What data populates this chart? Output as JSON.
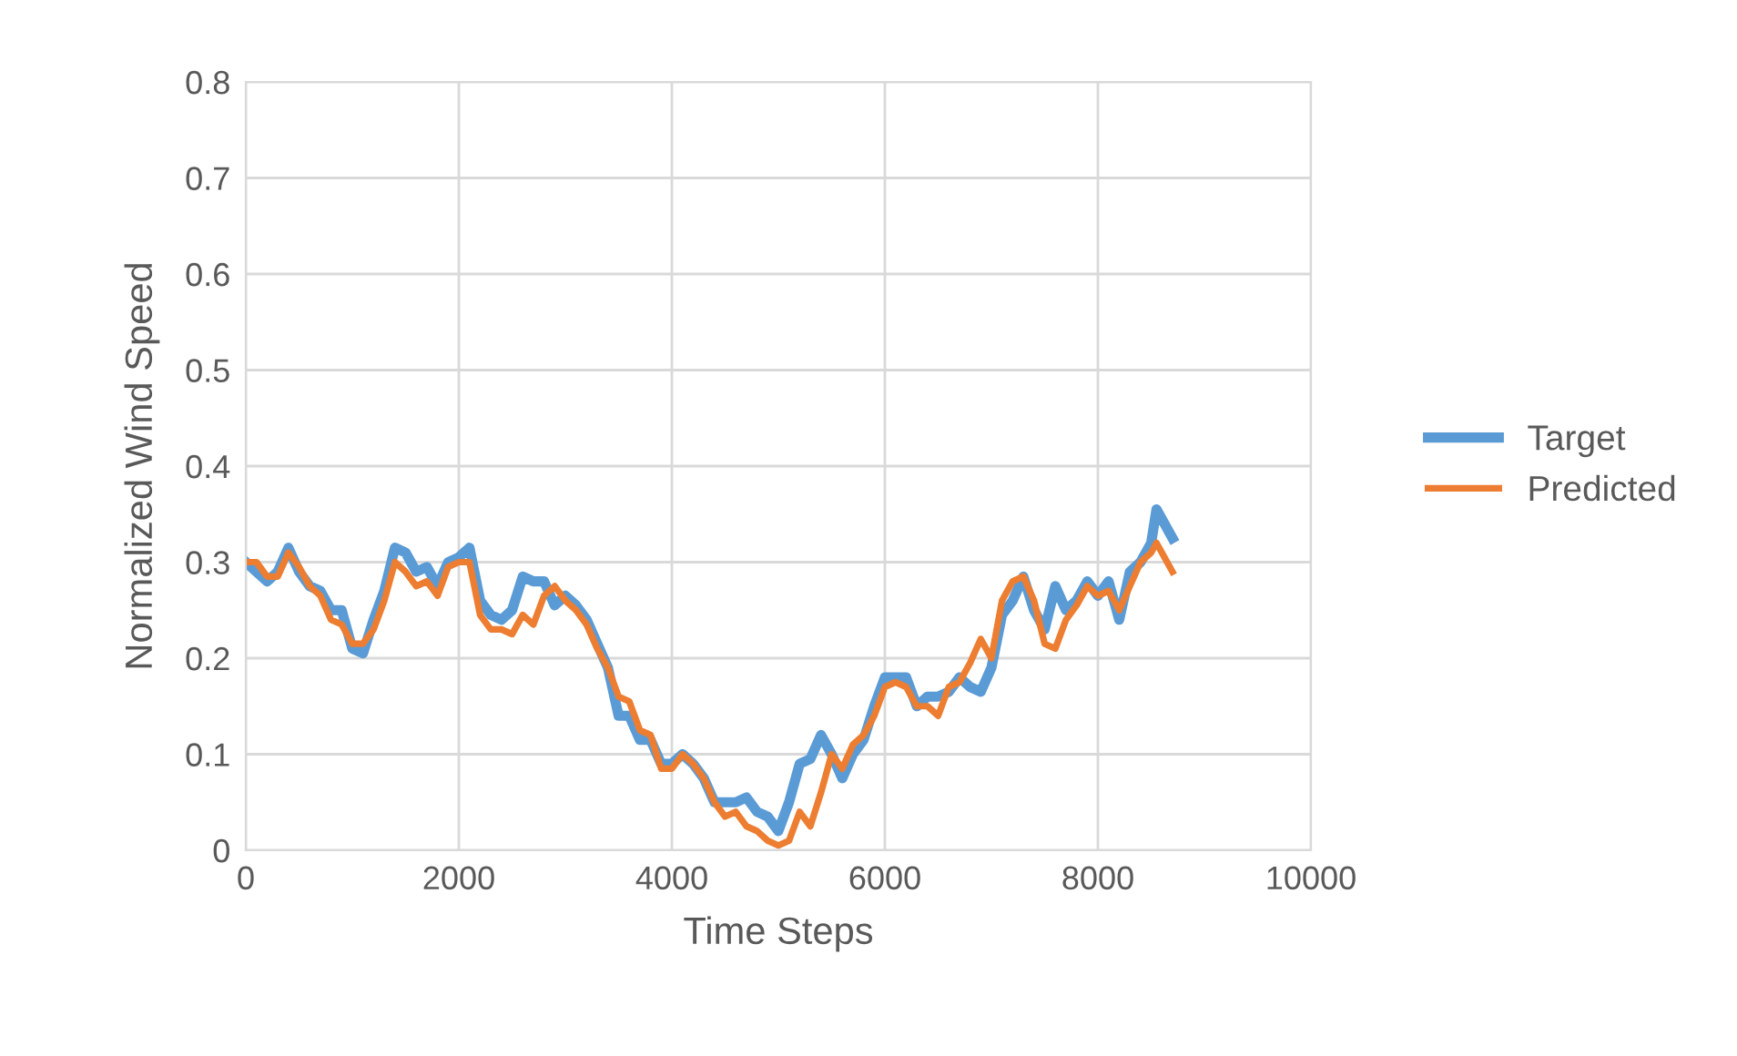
{
  "chart_data": {
    "type": "line",
    "xlabel": "Time Steps",
    "ylabel": "Normalized Wind Speed",
    "x": [
      0,
      100,
      200,
      300,
      400,
      500,
      600,
      700,
      800,
      900,
      1000,
      1100,
      1200,
      1300,
      1400,
      1500,
      1600,
      1700,
      1800,
      1900,
      2000,
      2100,
      2200,
      2300,
      2400,
      2500,
      2600,
      2700,
      2800,
      2900,
      3000,
      3100,
      3200,
      3300,
      3400,
      3500,
      3600,
      3700,
      3800,
      3900,
      4000,
      4100,
      4200,
      4300,
      4400,
      4500,
      4600,
      4700,
      4800,
      4900,
      5000,
      5100,
      5200,
      5300,
      5400,
      5500,
      5600,
      5700,
      5800,
      5900,
      6000,
      6100,
      6200,
      6300,
      6400,
      6500,
      6600,
      6700,
      6800,
      6900,
      7000,
      7100,
      7200,
      7300,
      7400,
      7500,
      7600,
      7700,
      7800,
      7900,
      8000,
      8100,
      8200,
      8300,
      8400,
      8500,
      8550,
      8700
    ],
    "series": [
      {
        "name": "Target",
        "color": "#5b9bd5",
        "values": [
          0.3,
          0.29,
          0.28,
          0.29,
          0.315,
          0.29,
          0.275,
          0.27,
          0.25,
          0.25,
          0.21,
          0.205,
          0.24,
          0.27,
          0.315,
          0.31,
          0.29,
          0.295,
          0.275,
          0.3,
          0.305,
          0.315,
          0.26,
          0.245,
          0.24,
          0.25,
          0.285,
          0.28,
          0.28,
          0.255,
          0.265,
          0.255,
          0.24,
          0.215,
          0.19,
          0.14,
          0.14,
          0.115,
          0.115,
          0.09,
          0.09,
          0.1,
          0.09,
          0.075,
          0.05,
          0.05,
          0.05,
          0.055,
          0.04,
          0.035,
          0.02,
          0.05,
          0.09,
          0.095,
          0.12,
          0.1,
          0.075,
          0.1,
          0.115,
          0.15,
          0.18,
          0.18,
          0.18,
          0.15,
          0.16,
          0.16,
          0.165,
          0.18,
          0.17,
          0.165,
          0.19,
          0.245,
          0.26,
          0.285,
          0.25,
          0.23,
          0.275,
          0.25,
          0.26,
          0.28,
          0.265,
          0.28,
          0.24,
          0.29,
          0.3,
          0.32,
          0.355,
          0.325
        ]
      },
      {
        "name": "Predicted",
        "color": "#ed7d31",
        "values": [
          0.3,
          0.3,
          0.285,
          0.285,
          0.31,
          0.295,
          0.275,
          0.265,
          0.24,
          0.235,
          0.215,
          0.215,
          0.23,
          0.26,
          0.3,
          0.29,
          0.275,
          0.28,
          0.265,
          0.295,
          0.3,
          0.3,
          0.245,
          0.23,
          0.23,
          0.225,
          0.245,
          0.235,
          0.265,
          0.275,
          0.26,
          0.25,
          0.235,
          0.21,
          0.19,
          0.16,
          0.155,
          0.125,
          0.12,
          0.085,
          0.085,
          0.1,
          0.09,
          0.075,
          0.05,
          0.035,
          0.04,
          0.025,
          0.02,
          0.01,
          0.005,
          0.01,
          0.04,
          0.025,
          0.06,
          0.1,
          0.085,
          0.11,
          0.12,
          0.14,
          0.17,
          0.175,
          0.17,
          0.15,
          0.15,
          0.14,
          0.17,
          0.175,
          0.195,
          0.22,
          0.2,
          0.26,
          0.28,
          0.285,
          0.26,
          0.215,
          0.21,
          0.24,
          0.255,
          0.275,
          0.265,
          0.27,
          0.25,
          0.275,
          0.3,
          0.31,
          0.32,
          0.29
        ]
      }
    ],
    "xlim": [
      0,
      10000
    ],
    "xticks": [
      0,
      2000,
      4000,
      6000,
      8000,
      10000
    ],
    "ylim": [
      0,
      0.8
    ],
    "yticks": [
      {
        "value": 0,
        "label": "0"
      },
      0.1,
      0.2,
      0.3,
      0.4,
      0.5,
      0.6,
      0.7,
      0.8
    ],
    "grid": true,
    "legend": "right",
    "marker": "none",
    "line_style": "solid"
  }
}
